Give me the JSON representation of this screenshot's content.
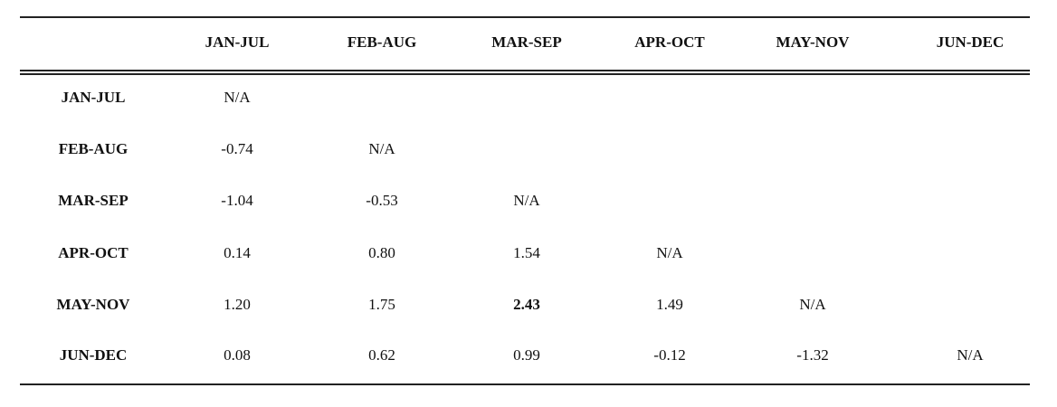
{
  "table": {
    "columns": [
      "JAN-JUL",
      "FEB-AUG",
      "MAR-SEP",
      "APR-OCT",
      "MAY-NOV",
      "JUN-DEC"
    ],
    "rows": [
      {
        "label": "JAN-JUL",
        "cells": [
          "N/A"
        ]
      },
      {
        "label": "FEB-AUG",
        "cells": [
          "-0.74",
          "N/A"
        ]
      },
      {
        "label": "MAR-SEP",
        "cells": [
          "-1.04",
          "-0.53",
          "N/A"
        ]
      },
      {
        "label": "APR-OCT",
        "cells": [
          "0.14",
          "0.80",
          "1.54",
          "N/A"
        ]
      },
      {
        "label": "MAY-NOV",
        "cells": [
          "1.20",
          "1.75",
          "2.43",
          "1.49",
          "N/A"
        ]
      },
      {
        "label": "JUN-DEC",
        "cells": [
          "0.08",
          "0.62",
          "0.99",
          "-0.12",
          "-1.32",
          "N/A"
        ]
      }
    ],
    "bold_cell": {
      "row": 4,
      "col": 2
    }
  }
}
